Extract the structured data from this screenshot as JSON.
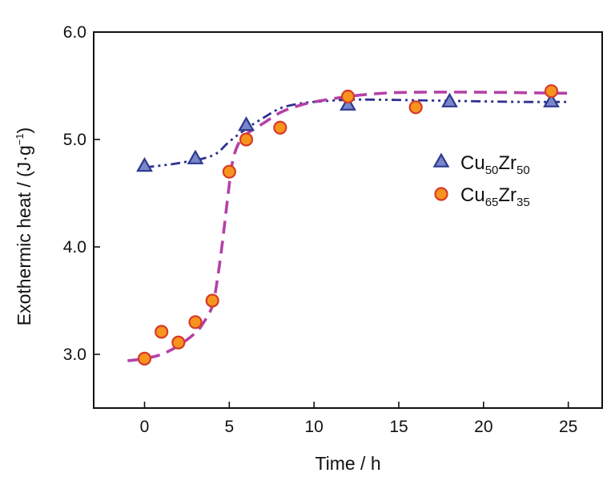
{
  "chart_data": {
    "type": "scatter",
    "xlabel": "Time / h",
    "ylabel": {
      "main": "Exothermic heat / (J·g",
      "sup": "−1",
      "close": ")"
    },
    "xlim": [
      -3,
      27
    ],
    "ylim": [
      2.5,
      6.0
    ],
    "xticks": [
      0,
      5,
      10,
      15,
      20,
      25
    ],
    "yticks": [
      3.0,
      4.0,
      5.0,
      6.0
    ],
    "xtick_labels": [
      "0",
      "5",
      "10",
      "15",
      "20",
      "25"
    ],
    "ytick_labels": [
      "3.0",
      "4.0",
      "5.0",
      "6.0"
    ],
    "grid": false,
    "legend_position": "right",
    "series": [
      {
        "legend": {
          "base1": "Cu",
          "sub1": "50",
          "base2": "Zr",
          "sub2": "50"
        },
        "marker": "triangle",
        "marker_fill": "#7b86c9",
        "marker_stroke": "#2b3a8f",
        "line_style": "dash-dot-dot",
        "line_color": "#2e3192",
        "x": [
          0,
          3,
          6,
          12,
          18,
          24
        ],
        "y": [
          4.75,
          4.82,
          5.13,
          5.32,
          5.35,
          5.35
        ],
        "fit": {
          "x": [
            0,
            2,
            4,
            5,
            6,
            7,
            8,
            9,
            10,
            12,
            14,
            18,
            22,
            25
          ],
          "y": [
            4.74,
            4.78,
            4.85,
            4.98,
            5.1,
            5.2,
            5.29,
            5.33,
            5.35,
            5.37,
            5.37,
            5.36,
            5.35,
            5.35
          ]
        }
      },
      {
        "legend": {
          "base1": "Cu",
          "sub1": "65",
          "base2": "Zr",
          "sub2": "35"
        },
        "marker": "circle",
        "marker_fill": "#f7941d",
        "marker_stroke": "#d63a2a",
        "line_style": "dashed",
        "line_color": "#b541a8",
        "x": [
          0,
          1,
          2,
          3,
          4,
          5,
          6,
          8,
          12,
          16,
          24
        ],
        "y": [
          2.96,
          3.21,
          3.11,
          3.3,
          3.5,
          4.7,
          5.0,
          5.11,
          5.4,
          5.3,
          5.45
        ],
        "fit": {
          "x": [
            -1,
            0,
            1,
            2,
            3,
            3.5,
            4,
            4.3,
            4.6,
            4.9,
            5.2,
            5.6,
            6,
            7,
            8,
            9,
            10,
            12,
            14,
            16,
            20,
            25
          ],
          "y": [
            2.94,
            2.96,
            3.0,
            3.08,
            3.2,
            3.3,
            3.45,
            3.7,
            4.05,
            4.45,
            4.8,
            4.98,
            5.05,
            5.15,
            5.25,
            5.31,
            5.35,
            5.4,
            5.43,
            5.44,
            5.44,
            5.43
          ]
        }
      }
    ]
  }
}
